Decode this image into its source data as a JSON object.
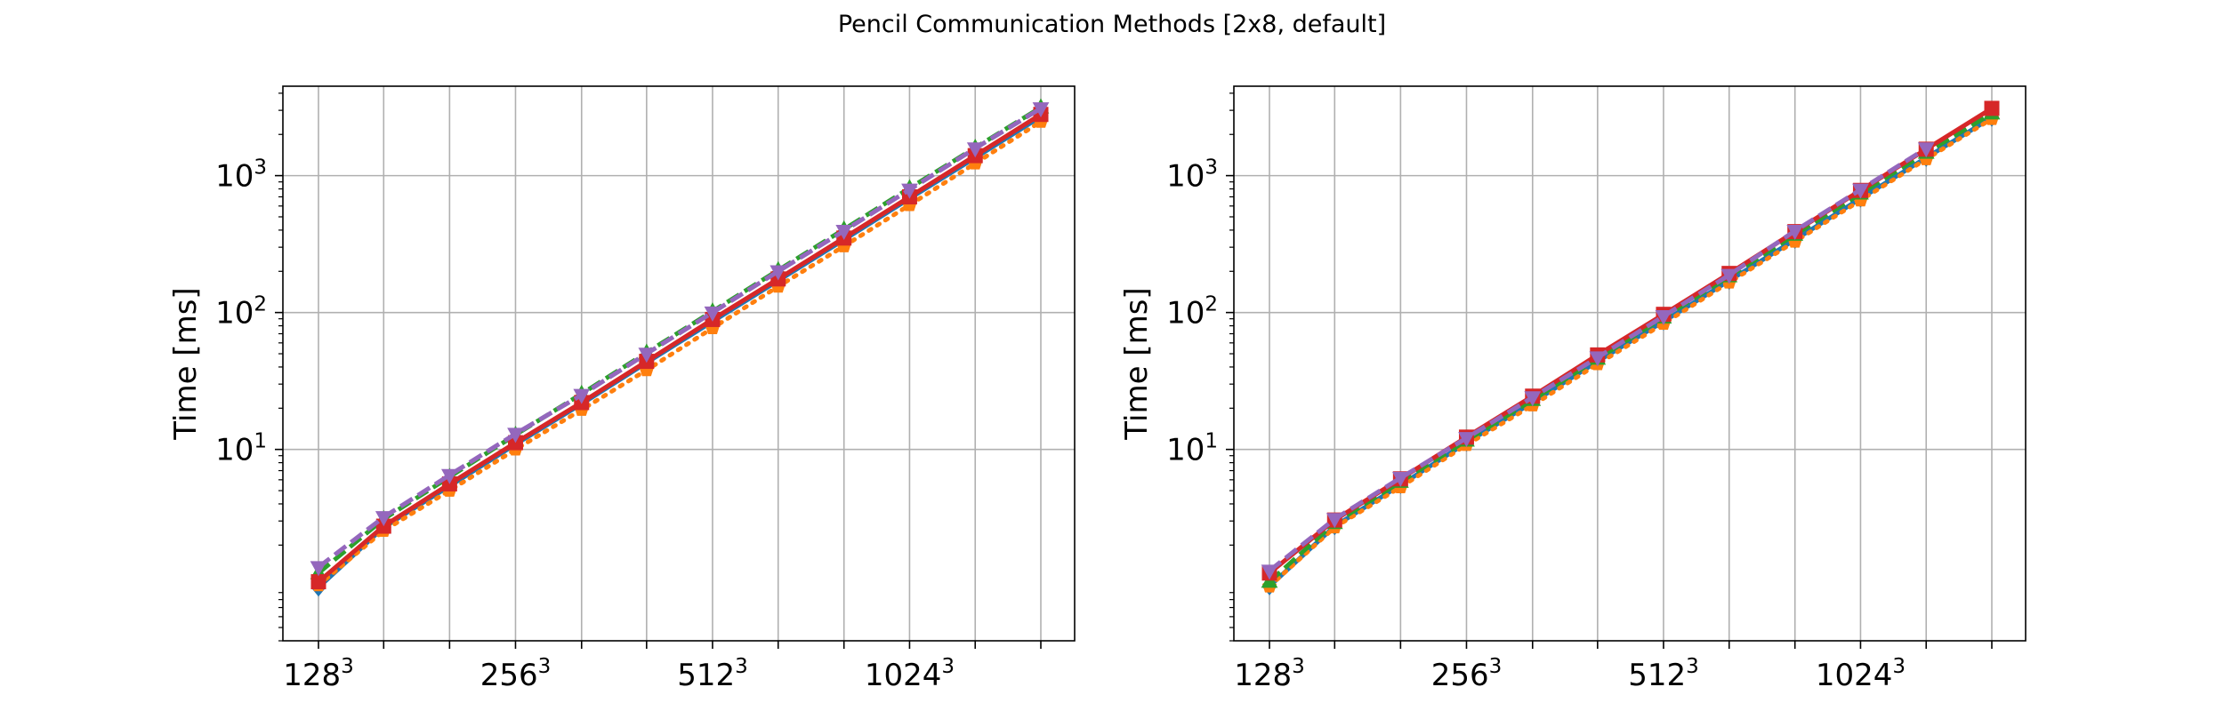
{
  "figure": {
    "title": "Pencil Communication Methods [2x8, default]"
  },
  "colors": {
    "blue": "#1f77b4",
    "orange": "#ff7f0e",
    "green": "#2ca02c",
    "red": "#d62728",
    "purple": "#9467bd"
  },
  "chart_data": [
    {
      "type": "line",
      "title": "",
      "xlabel": "",
      "ylabel": "Time [ms]",
      "yscale": "log",
      "ylim": [
        0.4,
        4500
      ],
      "grid": true,
      "x": [
        128,
        161,
        203,
        256,
        323,
        406,
        512,
        645,
        813,
        1024,
        1290,
        1625
      ],
      "xticks": [
        {
          "value": 128,
          "base": "128",
          "exp": "3"
        },
        {
          "value": 256,
          "base": "256",
          "exp": "3"
        },
        {
          "value": 512,
          "base": "512",
          "exp": "3"
        },
        {
          "value": 1024,
          "base": "1024",
          "exp": "3"
        }
      ],
      "yticks": [
        {
          "value": 10,
          "base": "10",
          "exp": "1"
        },
        {
          "value": 100,
          "base": "10",
          "exp": "2"
        },
        {
          "value": 1000,
          "base": "10",
          "exp": "3"
        }
      ],
      "series": [
        {
          "color": "#1f77b4",
          "dash": "solid",
          "marker": "diamond",
          "values": [
            0.98,
            2.7,
            5.4,
            10.9,
            21.5,
            43,
            86,
            171,
            340,
            680,
            1350,
            2700
          ]
        },
        {
          "color": "#ff7f0e",
          "dash": "dotted",
          "marker": "pentagon",
          "values": [
            1.02,
            2.55,
            5.0,
            10.0,
            19.5,
            38,
            77,
            155,
            305,
            610,
            1230,
            2480
          ]
        },
        {
          "color": "#2ca02c",
          "dash": "dashed",
          "marker": "triangle-up",
          "values": [
            1.25,
            3.1,
            6.3,
            12.8,
            25.5,
            51,
            102,
            204,
            405,
            810,
            1600,
            3150
          ]
        },
        {
          "color": "#d62728",
          "dash": "solid",
          "marker": "square",
          "values": [
            1.08,
            2.75,
            5.6,
            11.2,
            22,
            44,
            89,
            176,
            350,
            700,
            1400,
            2800
          ]
        },
        {
          "color": "#9467bd",
          "dash": "dashed",
          "marker": "triangle-down",
          "values": [
            1.38,
            3.2,
            6.5,
            13,
            25,
            50,
            100,
            200,
            395,
            790,
            1580,
            3100
          ]
        }
      ]
    },
    {
      "type": "line",
      "title": "",
      "xlabel": "",
      "ylabel": "Time [ms]",
      "yscale": "log",
      "ylim": [
        0.4,
        4500
      ],
      "grid": true,
      "x": [
        128,
        161,
        203,
        256,
        323,
        406,
        512,
        645,
        813,
        1024,
        1290,
        1625
      ],
      "xticks": [
        {
          "value": 128,
          "base": "128",
          "exp": "3"
        },
        {
          "value": 256,
          "base": "256",
          "exp": "3"
        },
        {
          "value": 512,
          "base": "512",
          "exp": "3"
        },
        {
          "value": 1024,
          "base": "1024",
          "exp": "3"
        }
      ],
      "yticks": [
        {
          "value": 10,
          "base": "10",
          "exp": "1"
        },
        {
          "value": 100,
          "base": "10",
          "exp": "2"
        },
        {
          "value": 1000,
          "base": "10",
          "exp": "3"
        }
      ],
      "series": [
        {
          "color": "#1f77b4",
          "dash": "solid",
          "marker": "diamond",
          "values": [
            1.0,
            2.75,
            5.5,
            11.2,
            22,
            44,
            86,
            171,
            340,
            680,
            1350,
            2650
          ]
        },
        {
          "color": "#ff7f0e",
          "dash": "dotted",
          "marker": "pentagon",
          "values": [
            1.0,
            2.7,
            5.3,
            10.8,
            21,
            42,
            83,
            166,
            330,
            660,
            1320,
            2600
          ]
        },
        {
          "color": "#2ca02c",
          "dash": "dashed",
          "marker": "triangle-up",
          "values": [
            1.08,
            2.9,
            5.8,
            11.6,
            23,
            46,
            92,
            184,
            370,
            740,
            1470,
            2850
          ]
        },
        {
          "color": "#d62728",
          "dash": "solid",
          "marker": "square",
          "values": [
            1.25,
            3.05,
            6.1,
            12.3,
            24.5,
            49,
            97,
            193,
            390,
            780,
            1560,
            3100
          ]
        },
        {
          "color": "#9467bd",
          "dash": "dashed",
          "marker": "triangle-down",
          "values": [
            1.3,
            3.1,
            6.2,
            12.1,
            24,
            47,
            94,
            188,
            395,
            790,
            1580,
            null
          ]
        }
      ]
    }
  ]
}
